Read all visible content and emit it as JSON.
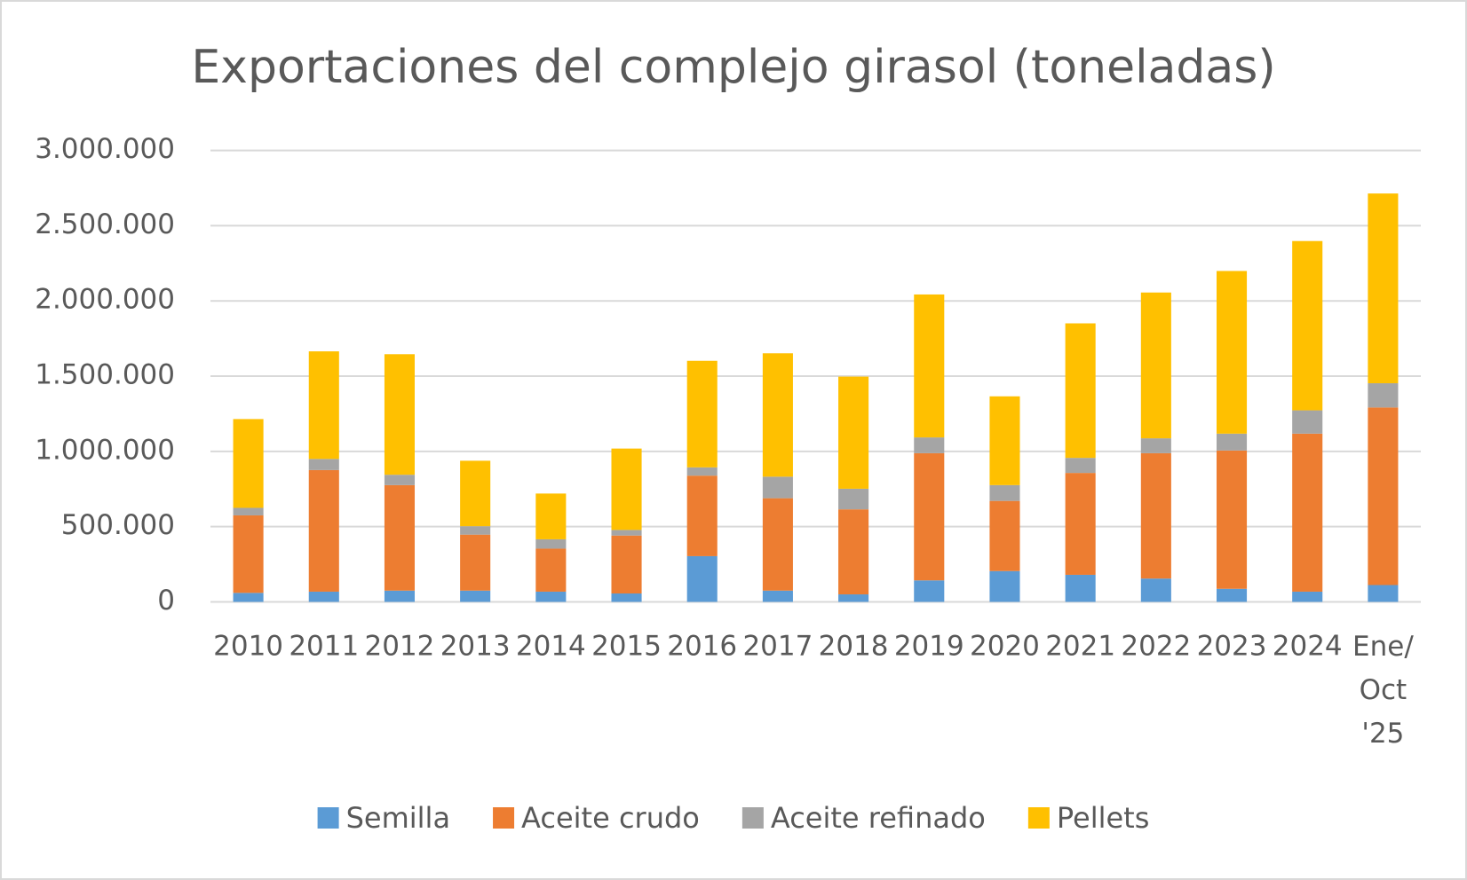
{
  "chart_data": {
    "type": "stacked_bar",
    "title": "Exportaciones del complejo girasol (toneladas)",
    "categories": [
      "2010",
      "2011",
      "2012",
      "2013",
      "2014",
      "2015",
      "2016",
      "2017",
      "2018",
      "2019",
      "2020",
      "2021",
      "2022",
      "2023",
      "2024",
      "Ene/Oct '25"
    ],
    "series": [
      {
        "name": "Semilla",
        "color": "#5b9bd5",
        "values": [
          60000,
          68000,
          75000,
          75000,
          68000,
          56000,
          304000,
          75000,
          50000,
          143000,
          205000,
          180000,
          155000,
          87000,
          68000,
          112000
        ]
      },
      {
        "name": "Aceite crudo",
        "color": "#ed7d31",
        "values": [
          515000,
          808000,
          701000,
          372000,
          286000,
          385000,
          535000,
          614000,
          565000,
          845000,
          466000,
          677000,
          833000,
          919000,
          1050000,
          1180000
        ]
      },
      {
        "name": "Aceite refinado",
        "color": "#a5a5a5",
        "values": [
          50000,
          74000,
          69000,
          56000,
          62000,
          37000,
          55000,
          143000,
          137000,
          105000,
          105000,
          100000,
          99000,
          112000,
          155000,
          161000
        ]
      },
      {
        "name": "Pellets",
        "color": "#ffc000",
        "values": [
          590000,
          715000,
          801000,
          435000,
          304000,
          541000,
          708000,
          820000,
          745000,
          950000,
          590000,
          894000,
          969000,
          1081000,
          1125000,
          1261000
        ]
      }
    ],
    "ylim": [
      0,
      3000000
    ],
    "yticks": [
      0,
      {
        "value": 500000,
        "label": "500.000"
      },
      {
        "value": 1000000,
        "label": "1.000.000"
      },
      {
        "value": 1500000,
        "label": "1.500.000"
      },
      {
        "value": 2000000,
        "label": "2.000.000"
      },
      {
        "value": 2500000,
        "label": "2.500.000"
      },
      {
        "value": 3000000,
        "label": "3.000.000"
      }
    ],
    "grid": true,
    "legend": "bottom"
  }
}
